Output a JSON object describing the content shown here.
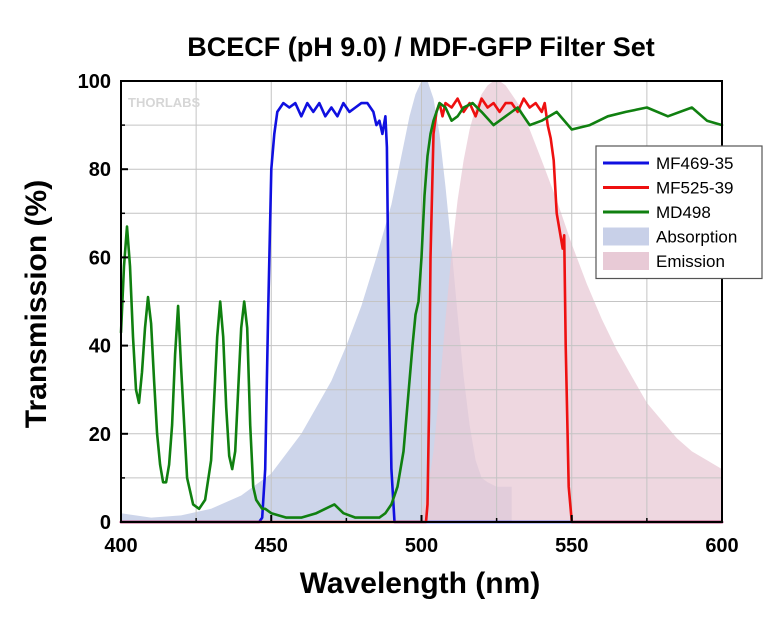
{
  "chart_data": {
    "type": "line",
    "title": "BCECF (pH 9.0) / MDF-GFP Filter Set",
    "xlabel": "Wavelength (nm)",
    "ylabel": "Transmission (%)",
    "xlim": [
      400,
      600
    ],
    "ylim": [
      0,
      100
    ],
    "xticks": [
      "400",
      "450",
      "500",
      "550",
      "600"
    ],
    "yticks": [
      "0",
      "20",
      "40",
      "60",
      "80",
      "100"
    ],
    "grid": true,
    "legend_position": "right",
    "watermark": "THORLABS",
    "series": [
      {
        "name": "MF469-35",
        "kind": "line",
        "color": "#1010e0",
        "x": [
          400,
          446,
          447,
          448,
          449,
          450,
          451,
          452,
          454,
          456,
          458,
          460,
          462,
          464,
          466,
          468,
          470,
          472,
          474,
          476,
          478,
          480,
          482,
          484,
          485,
          486,
          487,
          488,
          488.5,
          489,
          490,
          491,
          600
        ],
        "y": [
          0,
          0,
          1,
          12,
          48,
          80,
          88,
          93,
          95,
          94,
          95,
          92,
          95,
          93,
          95,
          92,
          94,
          92,
          95,
          93,
          94,
          95,
          95,
          93,
          90,
          91,
          88,
          92,
          85,
          54,
          12,
          0,
          0
        ]
      },
      {
        "name": "MF525-39",
        "kind": "line",
        "color": "#ee1010",
        "x": [
          400,
          501.5,
          502,
          502.5,
          503,
          504,
          505,
          506,
          507,
          508,
          510,
          512,
          514,
          516,
          518,
          520,
          522,
          524,
          526,
          528,
          530,
          532,
          534,
          536,
          538,
          540,
          541,
          542,
          543,
          544,
          545,
          546,
          547,
          547.5,
          548,
          549,
          550,
          600
        ],
        "y": [
          0,
          0,
          4,
          25,
          60,
          88,
          93,
          95,
          92,
          95,
          94,
          96,
          93,
          95,
          92,
          96,
          94,
          95,
          93,
          95,
          95,
          93,
          96,
          94,
          95,
          93,
          95,
          90,
          87,
          82,
          70,
          66,
          62,
          65,
          40,
          8,
          0,
          0
        ]
      },
      {
        "name": "MD498",
        "kind": "line",
        "color": "#108010",
        "x": [
          400,
          401,
          402,
          403,
          404,
          405,
          406,
          407,
          408,
          409,
          410,
          411,
          412,
          413,
          414,
          415,
          416,
          417,
          418,
          419,
          420,
          422,
          424,
          426,
          428,
          430,
          431,
          432,
          433,
          434,
          435,
          436,
          437,
          438,
          439,
          440,
          441,
          442,
          443,
          444,
          445,
          446,
          447,
          448,
          450,
          455,
          460,
          465,
          468,
          471,
          474,
          478,
          483,
          486,
          488,
          490,
          492,
          494,
          496,
          497,
          498,
          499,
          500,
          501,
          502,
          503,
          504,
          505,
          506,
          508,
          510,
          512,
          514,
          517,
          520,
          524,
          528,
          532,
          536,
          540,
          545,
          550,
          556,
          562,
          568,
          575,
          582,
          590,
          595,
          600
        ],
        "y": [
          43,
          58,
          67,
          58,
          42,
          30,
          27,
          34,
          44,
          51,
          45,
          32,
          20,
          13,
          9,
          9,
          13,
          22,
          38,
          49,
          35,
          10,
          4,
          3,
          5,
          14,
          28,
          42,
          50,
          42,
          26,
          15,
          12,
          16,
          30,
          44,
          50,
          44,
          22,
          8,
          5,
          4,
          3,
          3,
          2,
          1,
          1,
          2,
          3,
          4,
          2,
          1,
          1,
          1,
          2,
          4,
          8,
          16,
          32,
          40,
          47,
          50,
          60,
          74,
          83,
          88,
          91,
          93,
          95,
          94,
          91,
          92,
          94,
          95,
          93,
          90,
          92,
          94,
          90,
          91,
          93,
          89,
          90,
          92,
          93,
          94,
          92,
          94,
          91,
          90
        ]
      },
      {
        "name": "Absorption",
        "kind": "area",
        "color": "#c8d0e8",
        "x": [
          400,
          410,
          420,
          430,
          440,
          450,
          460,
          470,
          475,
          480,
          485,
          490,
          493,
          496,
          498,
          500,
          501,
          502,
          504,
          506,
          508,
          510,
          512,
          514,
          516,
          518,
          520,
          522,
          525,
          528,
          530,
          530.01
        ],
        "y": [
          2,
          1,
          1.5,
          3,
          6,
          11,
          20,
          32,
          40,
          49,
          60,
          72,
          82,
          92,
          97,
          100,
          101,
          100,
          96,
          88,
          76,
          62,
          47,
          33,
          22,
          14,
          10,
          9,
          8,
          8,
          8,
          0
        ]
      },
      {
        "name": "Emission",
        "kind": "area",
        "color": "#e8cad6",
        "x": [
          500,
          502,
          504,
          506,
          508,
          510,
          512,
          514,
          516,
          518,
          520,
          522,
          524,
          526,
          528,
          530,
          533,
          536,
          540,
          545,
          550,
          555,
          560,
          565,
          570,
          575,
          580,
          585,
          590,
          595,
          600
        ],
        "y": [
          2,
          7,
          16,
          30,
          46,
          61,
          73,
          82,
          89,
          94,
          97,
          99,
          100,
          100,
          99,
          97,
          94,
          89,
          82,
          73,
          63,
          54,
          46,
          39,
          33,
          27,
          23,
          19,
          16,
          14,
          12
        ]
      }
    ]
  }
}
